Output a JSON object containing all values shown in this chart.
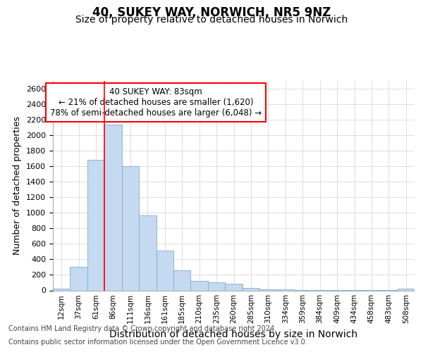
{
  "title1": "40, SUKEY WAY, NORWICH, NR5 9NZ",
  "title2": "Size of property relative to detached houses in Norwich",
  "xlabel": "Distribution of detached houses by size in Norwich",
  "ylabel": "Number of detached properties",
  "categories": [
    "12sqm",
    "37sqm",
    "61sqm",
    "86sqm",
    "111sqm",
    "136sqm",
    "161sqm",
    "185sqm",
    "210sqm",
    "235sqm",
    "260sqm",
    "285sqm",
    "310sqm",
    "334sqm",
    "359sqm",
    "384sqm",
    "409sqm",
    "434sqm",
    "458sqm",
    "483sqm",
    "508sqm"
  ],
  "values": [
    20,
    300,
    1680,
    2140,
    1600,
    970,
    510,
    255,
    125,
    100,
    90,
    35,
    15,
    10,
    5,
    3,
    2,
    2,
    1,
    1,
    20
  ],
  "bar_color": "#c5d9f0",
  "bar_edge_color": "#7bafd4",
  "ylim": [
    0,
    2700
  ],
  "yticks": [
    0,
    200,
    400,
    600,
    800,
    1000,
    1200,
    1400,
    1600,
    1800,
    2000,
    2200,
    2400,
    2600
  ],
  "red_line_index": 3,
  "annotation_line1": "40 SUKEY WAY: 83sqm",
  "annotation_line2": "← 21% of detached houses are smaller (1,620)",
  "annotation_line3": "78% of semi-detached houses are larger (6,048) →",
  "footer1": "Contains HM Land Registry data © Crown copyright and database right 2024.",
  "footer2": "Contains public sector information licensed under the Open Government Licence v3.0.",
  "bg_color": "#ffffff",
  "grid_color": "#d0d0d0",
  "title1_fontsize": 12,
  "title2_fontsize": 10,
  "xlabel_fontsize": 10,
  "ylabel_fontsize": 9,
  "footer_fontsize": 7
}
